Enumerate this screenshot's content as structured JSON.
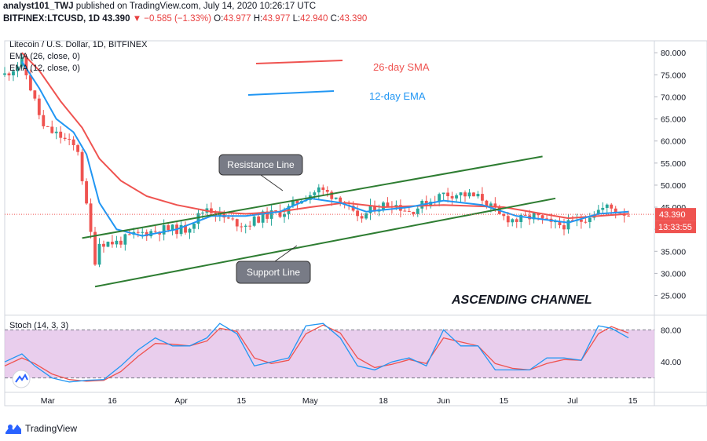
{
  "header": {
    "author": "analyst101_TWJ",
    "published": "published on TradingView.com, July 14, 2020 10:26:17 UTC",
    "symbol": "BITFINEX:LTCUSD, 1D",
    "last": "43.390",
    "change": "−0.585 (−1.33%)",
    "open_label": "O:",
    "open": "43.977",
    "high_label": "H:",
    "high": "43.977",
    "low_label": "L:",
    "low": "42.940",
    "close_label": "C:",
    "close": "43.390"
  },
  "colors": {
    "sma": "#ef5350",
    "ema": "#2196f3",
    "up": "#26a69a",
    "down": "#ef5350",
    "trend": "#2e7d32",
    "stoch_bg": "#e1bee7",
    "stoch_k": "#2196f3",
    "stoch_d": "#ef5350"
  },
  "footer": {
    "brand": "TradingView",
    "icon": "tradingview-logo-icon"
  },
  "chart_data": [
    {
      "type": "candlestick",
      "title": "Litecoin / U.S. Dollar, 1D, BITFINEX",
      "legend": [
        "EMA (26, close, 0)",
        "EMA (12, close, 0)"
      ],
      "annotations": {
        "sma_label": "26-day SMA",
        "ema_label": "12-day EMA",
        "resistance": "Resistance Line",
        "support": "Support Line",
        "pattern": "ASCENDING CHANNEL"
      },
      "price_label": "43.390",
      "countdown_label": "13:33:55",
      "ylim": [
        21,
        82
      ],
      "yticks": [
        "80.000",
        "75.000",
        "70.000",
        "65.000",
        "60.000",
        "55.000",
        "50.000",
        "45.000",
        "40.000",
        "35.000",
        "30.000",
        "25.000"
      ],
      "ytick_values": [
        80,
        75,
        70,
        65,
        60,
        55,
        50,
        45,
        40,
        35,
        30,
        25
      ],
      "xticks": [
        "Mar",
        "16",
        "Apr",
        "15",
        "May",
        "18",
        "Jun",
        "15",
        "Jul",
        "15"
      ],
      "xtick_dates": [
        "2020-03-01",
        "2020-03-16",
        "2020-04-01",
        "2020-04-15",
        "2020-05-01",
        "2020-05-18",
        "2020-06-01",
        "2020-06-15",
        "2020-07-01",
        "2020-07-15"
      ],
      "xlim": [
        "2020-02-20",
        "2020-07-20"
      ],
      "trendlines": {
        "resistance": [
          [
            "2020-03-09",
            38
          ],
          [
            "2020-06-24",
            56.5
          ]
        ],
        "support": [
          [
            "2020-03-12",
            27
          ],
          [
            "2020-06-27",
            47
          ]
        ]
      },
      "close_path": [
        [
          "2020-02-20",
          75
        ],
        [
          "2020-02-24",
          78
        ],
        [
          "2020-02-26",
          72
        ],
        [
          "2020-02-29",
          63
        ],
        [
          "2020-03-04",
          61
        ],
        [
          "2020-03-08",
          58
        ],
        [
          "2020-03-10",
          45
        ],
        [
          "2020-03-12",
          33
        ],
        [
          "2020-03-13",
          37
        ],
        [
          "2020-03-17",
          37
        ],
        [
          "2020-03-22",
          39
        ],
        [
          "2020-03-28",
          40
        ],
        [
          "2020-04-02",
          40
        ],
        [
          "2020-04-07",
          45
        ],
        [
          "2020-04-12",
          42
        ],
        [
          "2020-04-16",
          41
        ],
        [
          "2020-04-20",
          43
        ],
        [
          "2020-04-25",
          44
        ],
        [
          "2020-04-29",
          47
        ],
        [
          "2020-05-03",
          49
        ],
        [
          "2020-05-08",
          47
        ],
        [
          "2020-05-12",
          42
        ],
        [
          "2020-05-16",
          45
        ],
        [
          "2020-05-20",
          46
        ],
        [
          "2020-05-24",
          44
        ],
        [
          "2020-05-28",
          46
        ],
        [
          "2020-06-01",
          48
        ],
        [
          "2020-06-05",
          48
        ],
        [
          "2020-06-10",
          47
        ],
        [
          "2020-06-14",
          43
        ],
        [
          "2020-06-18",
          42
        ],
        [
          "2020-06-22",
          43
        ],
        [
          "2020-06-26",
          41
        ],
        [
          "2020-06-30",
          41
        ],
        [
          "2020-07-03",
          42
        ],
        [
          "2020-07-06",
          44
        ],
        [
          "2020-07-09",
          45
        ],
        [
          "2020-07-14",
          43.39
        ]
      ],
      "sma26": [
        [
          "2020-02-24",
          80
        ],
        [
          "2020-02-28",
          76
        ],
        [
          "2020-03-04",
          69
        ],
        [
          "2020-03-09",
          63
        ],
        [
          "2020-03-13",
          56
        ],
        [
          "2020-03-18",
          51
        ],
        [
          "2020-03-24",
          47.5
        ],
        [
          "2020-03-31",
          45.5
        ],
        [
          "2020-04-08",
          44
        ],
        [
          "2020-04-16",
          43.5
        ],
        [
          "2020-04-24",
          44
        ],
        [
          "2020-05-01",
          45
        ],
        [
          "2020-05-09",
          46
        ],
        [
          "2020-05-18",
          45
        ],
        [
          "2020-06-01",
          45.5
        ],
        [
          "2020-06-15",
          45
        ],
        [
          "2020-06-30",
          42.5
        ],
        [
          "2020-07-07",
          43
        ],
        [
          "2020-07-14",
          43.5
        ]
      ],
      "ema12": [
        [
          "2020-02-24",
          78
        ],
        [
          "2020-02-28",
          72
        ],
        [
          "2020-03-03",
          65
        ],
        [
          "2020-03-07",
          62
        ],
        [
          "2020-03-10",
          57
        ],
        [
          "2020-03-13",
          46
        ],
        [
          "2020-03-17",
          40
        ],
        [
          "2020-03-23",
          38.5
        ],
        [
          "2020-03-31",
          40
        ],
        [
          "2020-04-08",
          43
        ],
        [
          "2020-04-16",
          43
        ],
        [
          "2020-04-24",
          44
        ],
        [
          "2020-05-01",
          47
        ],
        [
          "2020-05-08",
          46
        ],
        [
          "2020-05-14",
          44
        ],
        [
          "2020-05-24",
          45
        ],
        [
          "2020-06-01",
          46.5
        ],
        [
          "2020-06-10",
          45.5
        ],
        [
          "2020-06-18",
          43
        ],
        [
          "2020-06-30",
          41.5
        ],
        [
          "2020-07-07",
          43.5
        ],
        [
          "2020-07-14",
          44
        ]
      ]
    },
    {
      "type": "line",
      "title": "Stoch (14, 3, 3)",
      "ylim": [
        5,
        95
      ],
      "yticks": [
        "80.00",
        "40.00"
      ],
      "ytick_values": [
        80,
        40
      ],
      "band": [
        20,
        80
      ],
      "series": [
        {
          "x": [
            "2020-02-20",
            "2020-02-24",
            "2020-02-27",
            "2020-03-02",
            "2020-03-06",
            "2020-03-10",
            "2020-03-14",
            "2020-03-18",
            "2020-03-22",
            "2020-03-26",
            "2020-03-30",
            "2020-04-03",
            "2020-04-07",
            "2020-04-10",
            "2020-04-14",
            "2020-04-18",
            "2020-04-22",
            "2020-04-26",
            "2020-04-30",
            "2020-05-04",
            "2020-05-08",
            "2020-05-12",
            "2020-05-16",
            "2020-05-20",
            "2020-05-24",
            "2020-05-28",
            "2020-06-01",
            "2020-06-05",
            "2020-06-09",
            "2020-06-13",
            "2020-06-17",
            "2020-06-21",
            "2020-06-25",
            "2020-06-29",
            "2020-07-03",
            "2020-07-07",
            "2020-07-10",
            "2020-07-14"
          ],
          "values": [
            40,
            50,
            35,
            20,
            15,
            17,
            18,
            35,
            55,
            70,
            60,
            60,
            70,
            88,
            75,
            35,
            40,
            45,
            85,
            88,
            70,
            35,
            30,
            40,
            45,
            35,
            80,
            60,
            60,
            30,
            30,
            30,
            45,
            45,
            42,
            85,
            82,
            70
          ]
        },
        {
          "x": [
            "2020-02-20",
            "2020-02-24",
            "2020-02-27",
            "2020-03-02",
            "2020-03-06",
            "2020-03-10",
            "2020-03-14",
            "2020-03-18",
            "2020-03-22",
            "2020-03-26",
            "2020-03-30",
            "2020-04-03",
            "2020-04-07",
            "2020-04-10",
            "2020-04-14",
            "2020-04-18",
            "2020-04-22",
            "2020-04-26",
            "2020-04-30",
            "2020-05-04",
            "2020-05-08",
            "2020-05-12",
            "2020-05-16",
            "2020-05-20",
            "2020-05-24",
            "2020-05-28",
            "2020-06-01",
            "2020-06-05",
            "2020-06-09",
            "2020-06-13",
            "2020-06-17",
            "2020-06-21",
            "2020-06-25",
            "2020-06-29",
            "2020-07-03",
            "2020-07-07",
            "2020-07-10",
            "2020-07-14"
          ],
          "values": [
            35,
            45,
            38,
            25,
            18,
            16,
            17,
            28,
            47,
            63,
            62,
            60,
            66,
            82,
            78,
            45,
            38,
            42,
            75,
            86,
            76,
            45,
            33,
            37,
            43,
            38,
            70,
            65,
            60,
            38,
            32,
            30,
            38,
            43,
            42,
            75,
            84,
            76
          ]
        }
      ]
    }
  ]
}
